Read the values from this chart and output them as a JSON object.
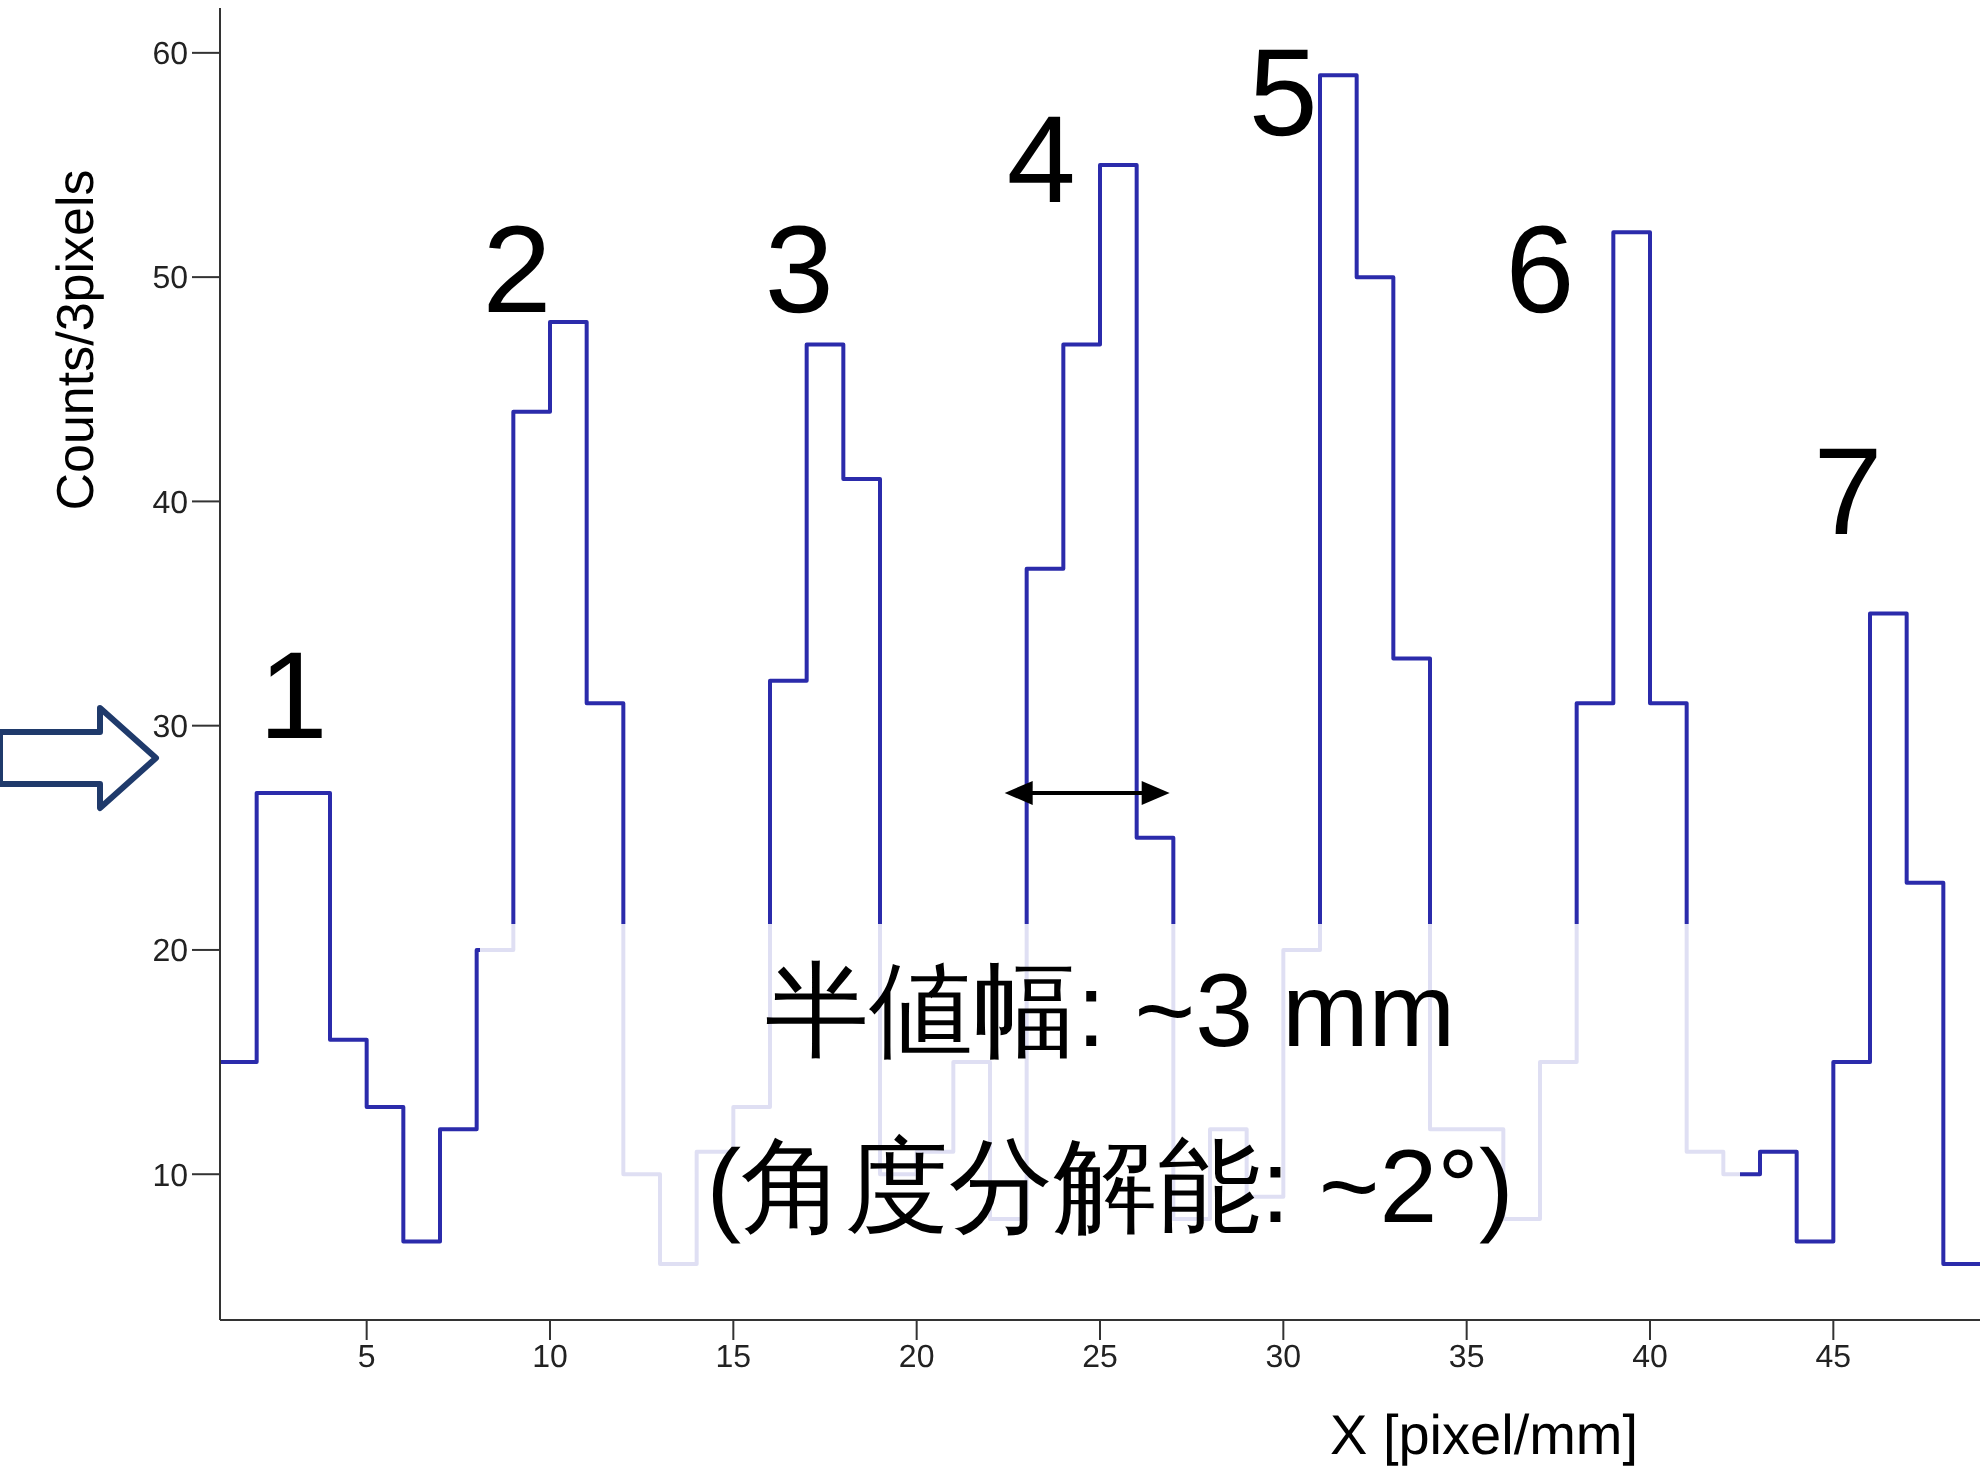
{
  "chart_data": {
    "type": "histogram",
    "ylabel": "Counts/3pixels",
    "xlabel": "X [pixel/mm]",
    "bins": [
      1,
      2,
      3,
      4,
      5,
      6,
      7,
      8,
      9,
      10,
      11,
      12,
      13,
      14,
      15,
      16,
      17,
      18,
      19,
      20,
      21,
      22,
      23,
      24,
      25,
      26,
      27,
      28,
      29,
      30,
      31,
      32,
      33,
      34,
      35,
      36,
      37,
      38,
      39,
      40,
      41,
      42,
      43,
      44,
      45,
      46,
      47,
      48,
      49
    ],
    "values": [
      15,
      27,
      27,
      16,
      13,
      7,
      12,
      20,
      44,
      48,
      31,
      10,
      6,
      11,
      13,
      32,
      47,
      41,
      10,
      11,
      15,
      8,
      37,
      47,
      55,
      25,
      8,
      12,
      9,
      20,
      59,
      50,
      33,
      12,
      12,
      8,
      15,
      31,
      52,
      31,
      11,
      10,
      11,
      7,
      15,
      35,
      23,
      6
    ],
    "color": "#2b2bab",
    "xlim": [
      1,
      49
    ],
    "ylim": [
      3.5,
      62
    ],
    "xticks": [
      5,
      10,
      15,
      20,
      25,
      30,
      35,
      40,
      45
    ],
    "yticks": [
      10,
      20,
      30,
      40,
      50,
      60
    ],
    "grid": false,
    "annotations": [
      "1",
      "2",
      "3",
      "4",
      "5",
      "6",
      "7",
      "半値幅: ~3 mm",
      "(角度分解能: ~2°)"
    ]
  }
}
